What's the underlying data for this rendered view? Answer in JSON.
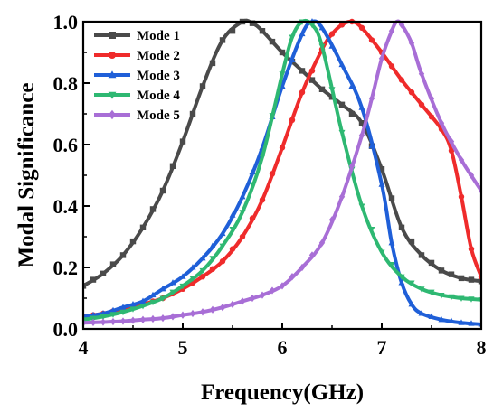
{
  "chart_data": {
    "type": "line",
    "xlabel": "Frequency(GHz)",
    "ylabel": "Modal Significance",
    "xlim": [
      4,
      8
    ],
    "ylim": [
      0,
      1.0
    ],
    "xticks": [
      "4",
      "5",
      "6",
      "7",
      "8"
    ],
    "yticks": [
      "0.0",
      "0.2",
      "0.4",
      "0.6",
      "0.8",
      "1.0"
    ],
    "grid": false,
    "legend_position": "top-left",
    "series": [
      {
        "name": "Mode 1",
        "color": "#4a4a4a",
        "marker": "square",
        "x": [
          4.0,
          4.2,
          4.4,
          4.6,
          4.8,
          5.0,
          5.2,
          5.4,
          5.6,
          5.7,
          5.8,
          6.0,
          6.2,
          6.4,
          6.6,
          6.8,
          7.0,
          7.2,
          7.4,
          7.6,
          7.8,
          8.0
        ],
        "y": [
          0.14,
          0.18,
          0.24,
          0.33,
          0.45,
          0.61,
          0.79,
          0.94,
          1.0,
          0.995,
          0.97,
          0.9,
          0.84,
          0.78,
          0.73,
          0.67,
          0.52,
          0.33,
          0.24,
          0.19,
          0.165,
          0.155
        ]
      },
      {
        "name": "Mode 2",
        "color": "#ef2b2b",
        "marker": "circle",
        "x": [
          4.0,
          4.2,
          4.4,
          4.6,
          4.8,
          5.0,
          5.2,
          5.4,
          5.6,
          5.8,
          6.0,
          6.2,
          6.4,
          6.5,
          6.6,
          6.7,
          6.8,
          7.0,
          7.2,
          7.4,
          7.6,
          7.7,
          7.8,
          7.9,
          8.0
        ],
        "y": [
          0.04,
          0.05,
          0.065,
          0.08,
          0.1,
          0.13,
          0.17,
          0.22,
          0.3,
          0.42,
          0.59,
          0.77,
          0.91,
          0.96,
          0.99,
          1.0,
          0.98,
          0.9,
          0.81,
          0.73,
          0.65,
          0.58,
          0.43,
          0.26,
          0.17
        ]
      },
      {
        "name": "Mode 3",
        "color": "#1f5fd8",
        "marker": "triangle-up",
        "x": [
          4.0,
          4.2,
          4.4,
          4.6,
          4.8,
          5.0,
          5.2,
          5.4,
          5.6,
          5.8,
          6.0,
          6.2,
          6.3,
          6.4,
          6.6,
          6.8,
          7.0,
          7.1,
          7.2,
          7.3,
          7.4,
          7.6,
          7.8,
          8.0
        ],
        "y": [
          0.04,
          0.05,
          0.07,
          0.09,
          0.13,
          0.17,
          0.23,
          0.31,
          0.43,
          0.59,
          0.79,
          0.96,
          1.0,
          0.98,
          0.86,
          0.72,
          0.47,
          0.28,
          0.15,
          0.08,
          0.05,
          0.03,
          0.02,
          0.015
        ]
      },
      {
        "name": "Mode 4",
        "color": "#2eb872",
        "marker": "triangle-down",
        "x": [
          4.0,
          4.2,
          4.4,
          4.6,
          4.8,
          5.0,
          5.2,
          5.4,
          5.6,
          5.8,
          6.0,
          6.1,
          6.2,
          6.3,
          6.4,
          6.6,
          6.8,
          7.0,
          7.2,
          7.4,
          7.6,
          7.8,
          8.0
        ],
        "y": [
          0.03,
          0.04,
          0.055,
          0.075,
          0.1,
          0.14,
          0.19,
          0.27,
          0.38,
          0.56,
          0.83,
          0.95,
          1.0,
          0.99,
          0.92,
          0.64,
          0.4,
          0.25,
          0.17,
          0.13,
          0.11,
          0.1,
          0.095
        ]
      },
      {
        "name": "Mode 5",
        "color": "#a86ed6",
        "marker": "diamond",
        "x": [
          4.0,
          4.2,
          4.4,
          4.6,
          4.8,
          5.0,
          5.2,
          5.4,
          5.6,
          5.8,
          6.0,
          6.2,
          6.4,
          6.6,
          6.8,
          6.9,
          7.0,
          7.1,
          7.15,
          7.2,
          7.3,
          7.4,
          7.6,
          7.8,
          8.0
        ],
        "y": [
          0.02,
          0.022,
          0.025,
          0.03,
          0.035,
          0.045,
          0.055,
          0.07,
          0.09,
          0.11,
          0.14,
          0.2,
          0.28,
          0.43,
          0.63,
          0.75,
          0.88,
          0.97,
          1.0,
          0.99,
          0.93,
          0.83,
          0.67,
          0.55,
          0.45
        ]
      }
    ]
  }
}
